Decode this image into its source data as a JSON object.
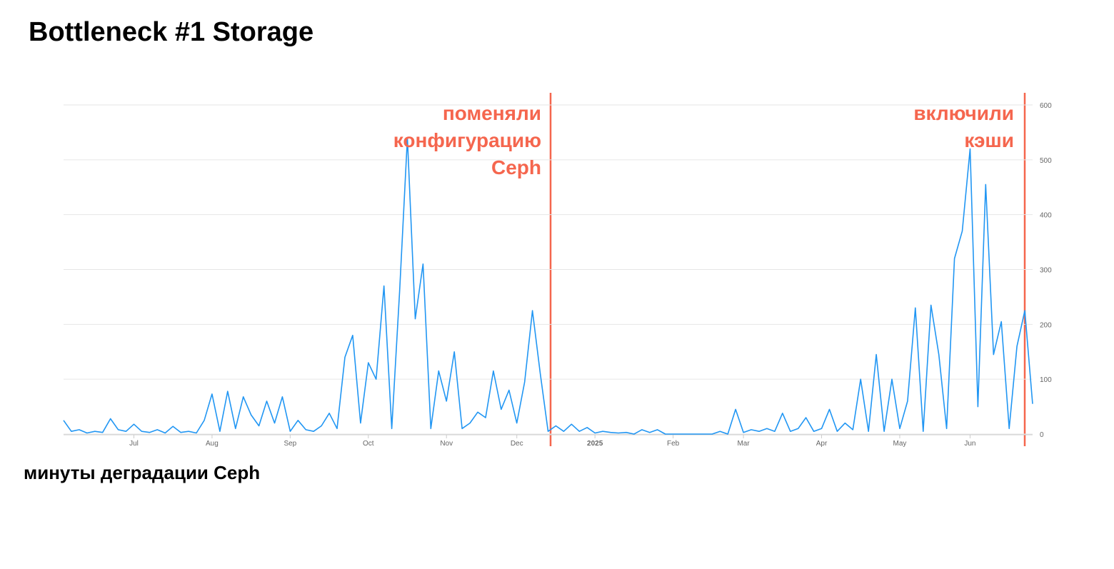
{
  "page": {
    "title": "Bottleneck #1 Storage",
    "caption": "минуты деградации Ceph"
  },
  "chart_data": {
    "type": "line",
    "color": "#2196f3",
    "categories": [
      null,
      null,
      null,
      null,
      null,
      null,
      null,
      null,
      null,
      "Jul",
      null,
      null,
      null,
      null,
      null,
      null,
      null,
      null,
      null,
      "Aug",
      null,
      null,
      null,
      null,
      null,
      null,
      null,
      null,
      null,
      "Sep",
      null,
      null,
      null,
      null,
      null,
      null,
      null,
      null,
      null,
      "Oct",
      null,
      null,
      null,
      null,
      null,
      null,
      null,
      null,
      null,
      "Nov",
      null,
      null,
      null,
      null,
      null,
      null,
      null,
      null,
      "Dec",
      null,
      null,
      null,
      null,
      null,
      null,
      null,
      null,
      null,
      "2025",
      null,
      null,
      null,
      null,
      null,
      null,
      null,
      null,
      null,
      "Feb",
      null,
      null,
      null,
      null,
      null,
      null,
      null,
      null,
      "Mar",
      null,
      null,
      null,
      null,
      null,
      null,
      null,
      null,
      null,
      "Apr",
      null,
      null,
      null,
      null,
      null,
      null,
      null,
      null,
      null,
      "May",
      null,
      null,
      null,
      null,
      null,
      null,
      null,
      null,
      "Jun",
      null,
      null,
      null,
      null,
      null,
      null,
      null,
      null
    ],
    "values": [
      25,
      5,
      8,
      2,
      5,
      3,
      28,
      8,
      5,
      18,
      5,
      3,
      8,
      2,
      14,
      3,
      5,
      2,
      25,
      73,
      5,
      78,
      10,
      68,
      35,
      15,
      60,
      20,
      68,
      5,
      25,
      8,
      5,
      15,
      38,
      10,
      140,
      180,
      20,
      130,
      100,
      270,
      10,
      260,
      540,
      210,
      310,
      10,
      115,
      60,
      150,
      10,
      20,
      40,
      30,
      115,
      45,
      80,
      20,
      95,
      225,
      110,
      5,
      15,
      5,
      18,
      5,
      12,
      2,
      5,
      3,
      2,
      3,
      0,
      8,
      3,
      8,
      0,
      0,
      0,
      0,
      0,
      0,
      0,
      5,
      0,
      45,
      3,
      8,
      5,
      10,
      5,
      38,
      5,
      10,
      30,
      5,
      10,
      45,
      5,
      20,
      8,
      100,
      5,
      145,
      5,
      100,
      10,
      60,
      230,
      5,
      235,
      145,
      10,
      320,
      370,
      520,
      50,
      455,
      145,
      205,
      10,
      160,
      225,
      55
    ],
    "ylim": [
      0,
      600
    ],
    "yticks": [
      0,
      100,
      200,
      300,
      400,
      500,
      600
    ],
    "grid": true,
    "annotations": [
      {
        "lines": [
          "поменяли",
          "конфигурацию",
          "Ceph"
        ]
      },
      {
        "lines": [
          "включили",
          "кэши"
        ]
      }
    ]
  }
}
